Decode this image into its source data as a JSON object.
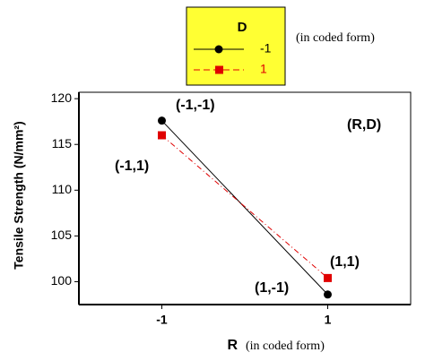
{
  "chart_data": {
    "type": "line",
    "x": [
      -1,
      1
    ],
    "series": [
      {
        "name": "-1",
        "color": "#000000",
        "marker": "circle",
        "dash": "solid",
        "values": [
          117.6,
          98.6
        ]
      },
      {
        "name": "1",
        "color": "#e00000",
        "marker": "square",
        "dash": "dashed",
        "values": [
          116.0,
          100.4
        ]
      }
    ],
    "legend_title": "D",
    "legend_note": "(in coded form)",
    "x_label": "R",
    "x_label_note": "(in coded form)",
    "y_label": "Tensile Strength (N/mm²)",
    "annotations": [
      "(-1,-1)",
      "(-1,1)",
      "(1,-1)",
      "(1,1)",
      "(R,D)"
    ],
    "xlim": [
      -2,
      2
    ],
    "xticks": [
      -1,
      1
    ],
    "ylim": [
      97.5,
      120.7
    ],
    "yticks": [
      100,
      105,
      110,
      115,
      120
    ]
  }
}
